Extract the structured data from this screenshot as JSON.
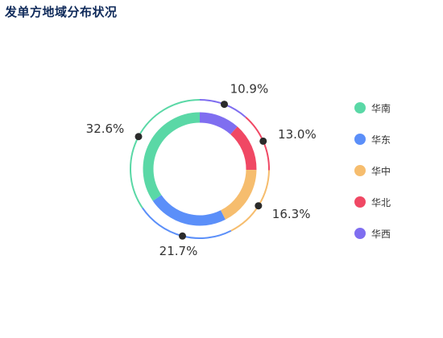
{
  "title": "发单方地域分布状况",
  "chart_data": {
    "type": "pie",
    "variant": "donut",
    "title": "发单方地域分布状况",
    "categories": [
      "华南",
      "华东",
      "华中",
      "华北",
      "华西"
    ],
    "values": [
      32.6,
      21.7,
      16.3,
      13.0,
      10.9
    ],
    "labels": [
      "32.6%",
      "21.7%",
      "16.3%",
      "13.0%",
      "10.9%"
    ],
    "colors": [
      "#5ad8a6",
      "#5b8ff9",
      "#f6bd6e",
      "#f04864",
      "#7f6ef0"
    ],
    "legend_position": "right"
  },
  "legend": [
    {
      "label": "华南",
      "color": "#5ad8a6"
    },
    {
      "label": "华东",
      "color": "#5b8ff9"
    },
    {
      "label": "华中",
      "color": "#f6bd6e"
    },
    {
      "label": "华北",
      "color": "#f04864"
    },
    {
      "label": "华西",
      "color": "#7f6ef0"
    }
  ]
}
